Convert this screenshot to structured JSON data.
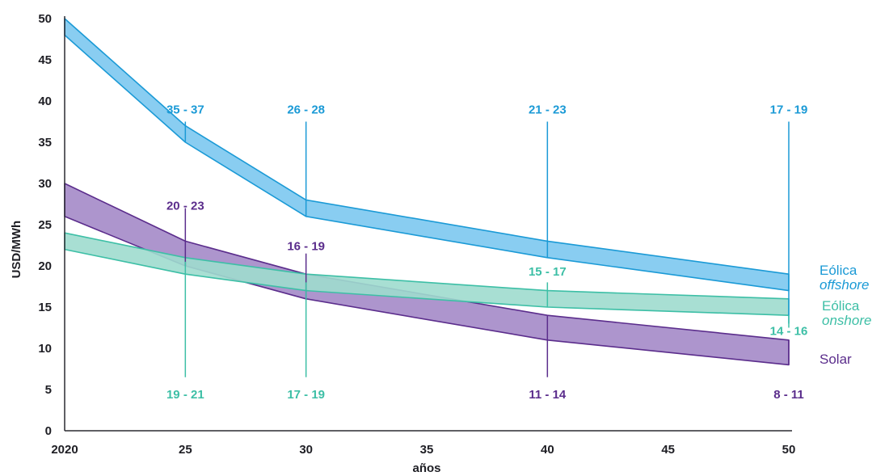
{
  "chart_data": {
    "type": "area",
    "xlabel": "años",
    "ylabel": "USD/MWh",
    "x_tick_labels": [
      "2020",
      "25",
      "30",
      "35",
      "40",
      "45",
      "50"
    ],
    "x_tick_values": [
      2020,
      2025,
      2030,
      2035,
      2040,
      2045,
      2050
    ],
    "y_ticks": [
      0,
      5,
      10,
      15,
      20,
      25,
      30,
      35,
      40,
      45,
      50
    ],
    "xlim": [
      2020,
      2050
    ],
    "ylim": [
      0,
      50
    ],
    "grid": false,
    "legend_placement": "right",
    "series": [
      {
        "name": "Eólica offshore",
        "legend_line1": "Eólica",
        "legend_line2": "offshore",
        "color": "#1b9ad6",
        "fill": "#7cc8ef",
        "x": [
          2020,
          2025,
          2030,
          2040,
          2050
        ],
        "upper": [
          50,
          37,
          28,
          23,
          19
        ],
        "lower": [
          48,
          35,
          26,
          21,
          17
        ]
      },
      {
        "name": "Solar",
        "legend_line1": "Solar",
        "legend_line2": "",
        "color": "#5b2d8c",
        "fill": "#a48ac8",
        "x": [
          2020,
          2025,
          2030,
          2040,
          2050
        ],
        "upper": [
          30,
          23,
          19,
          14,
          11
        ],
        "lower": [
          26,
          20,
          16,
          11,
          8
        ]
      },
      {
        "name": "Eólica onshore",
        "legend_line1": "Eólica",
        "legend_line2": "onshore",
        "color": "#3dbfa6",
        "fill": "#9fdcce",
        "x": [
          2020,
          2025,
          2030,
          2040,
          2050
        ],
        "upper": [
          24,
          21,
          19,
          17,
          16
        ],
        "lower": [
          22,
          19,
          17,
          15,
          14
        ]
      }
    ],
    "annotations": [
      {
        "series": 0,
        "text": "35 - 37",
        "x": 2025,
        "label_y": 38.5,
        "line_top": 37.5,
        "line_bottom": 35
      },
      {
        "series": 0,
        "text": "26 - 28",
        "x": 2030,
        "label_y": 38.5,
        "line_top": 37.5,
        "line_bottom": 26
      },
      {
        "series": 0,
        "text": "21 - 23",
        "x": 2040,
        "label_y": 38.5,
        "line_top": 37.5,
        "line_bottom": 21
      },
      {
        "series": 0,
        "text": "17 - 19",
        "x": 2050,
        "label_y": 38.5,
        "line_top": 37.5,
        "line_bottom": 13
      },
      {
        "series": 1,
        "text": "20 - 23",
        "x": 2025,
        "label_y": 26.8,
        "line_top": 27,
        "line_bottom": 20
      },
      {
        "series": 1,
        "text": "16 - 19",
        "x": 2030,
        "label_y": 21.9,
        "line_top": 21.5,
        "line_bottom": 16
      },
      {
        "series": 1,
        "text": "11 - 14",
        "x": 2040,
        "label_y": 3.9,
        "line_top": 14,
        "line_bottom": 6.5
      },
      {
        "series": 1,
        "text": "8 - 11",
        "x": 2050,
        "label_y": 3.9,
        "line_top": 11,
        "line_bottom": 8
      },
      {
        "series": 2,
        "text": "19 - 21",
        "x": 2025,
        "label_y": 3.9,
        "line_top": 20.5,
        "line_bottom": 6.5
      },
      {
        "series": 2,
        "text": "17 - 19",
        "x": 2030,
        "label_y": 3.9,
        "line_top": 18,
        "line_bottom": 6.5
      },
      {
        "series": 2,
        "text": "15 - 17",
        "x": 2040,
        "label_y": 18.8,
        "line_top": 18,
        "line_bottom": 15
      },
      {
        "series": 2,
        "text": "14 - 16",
        "x": 2050,
        "label_y": 11.6,
        "line_top": 14,
        "line_bottom": 12.5
      }
    ]
  }
}
